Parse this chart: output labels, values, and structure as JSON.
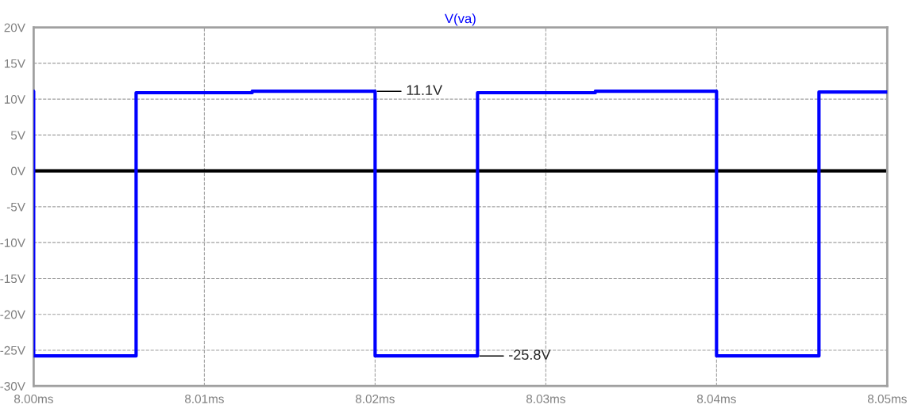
{
  "chart_data": {
    "type": "line",
    "title": "V(va)",
    "x": [
      8.0,
      8.0,
      8.006,
      8.006,
      8.0128,
      8.0128,
      8.02,
      8.02,
      8.026,
      8.026,
      8.0329,
      8.0329,
      8.04,
      8.04,
      8.046,
      8.046,
      8.05
    ],
    "series": [
      {
        "color": "#0000ff",
        "values": [
          11.1,
          -25.8,
          -25.8,
          10.9,
          10.9,
          11.1,
          11.1,
          -25.8,
          -25.8,
          10.9,
          10.9,
          11.1,
          11.1,
          -25.8,
          -25.8,
          11.0,
          11.0
        ]
      }
    ],
    "xlim": [
      8.0,
      8.05
    ],
    "xticks": [
      {
        "value": 8.0,
        "label": "8.00ms"
      },
      {
        "value": 8.01,
        "label": "8.01ms"
      },
      {
        "value": 8.02,
        "label": "8.02ms"
      },
      {
        "value": 8.03,
        "label": "8.03ms"
      },
      {
        "value": 8.04,
        "label": "8.04ms"
      },
      {
        "value": 8.05,
        "label": "8.05ms"
      }
    ],
    "ylim": [
      -30,
      20
    ],
    "yticks": [
      {
        "value": 20,
        "label": "20V"
      },
      {
        "value": 15,
        "label": "15V"
      },
      {
        "value": 10,
        "label": "10V"
      },
      {
        "value": 5,
        "label": "5V"
      },
      {
        "value": 0,
        "label": "0V"
      },
      {
        "value": -5,
        "label": "-5V"
      },
      {
        "value": -10,
        "label": "-10V"
      },
      {
        "value": -15,
        "label": "-15V"
      },
      {
        "value": -20,
        "label": "-20V"
      },
      {
        "value": -25,
        "label": "-25V"
      },
      {
        "value": -30,
        "label": "-30V"
      }
    ],
    "ref_lines": [
      {
        "axis": "y",
        "value": 0,
        "color": "#000000"
      }
    ],
    "annotations": [
      {
        "text": "11.1V",
        "x": 8.02,
        "y": 11.1
      },
      {
        "text": "-25.8V",
        "x": 8.026,
        "y": -25.8
      }
    ],
    "grid": true,
    "marker": "none",
    "line_style": "solid",
    "legend": false
  }
}
